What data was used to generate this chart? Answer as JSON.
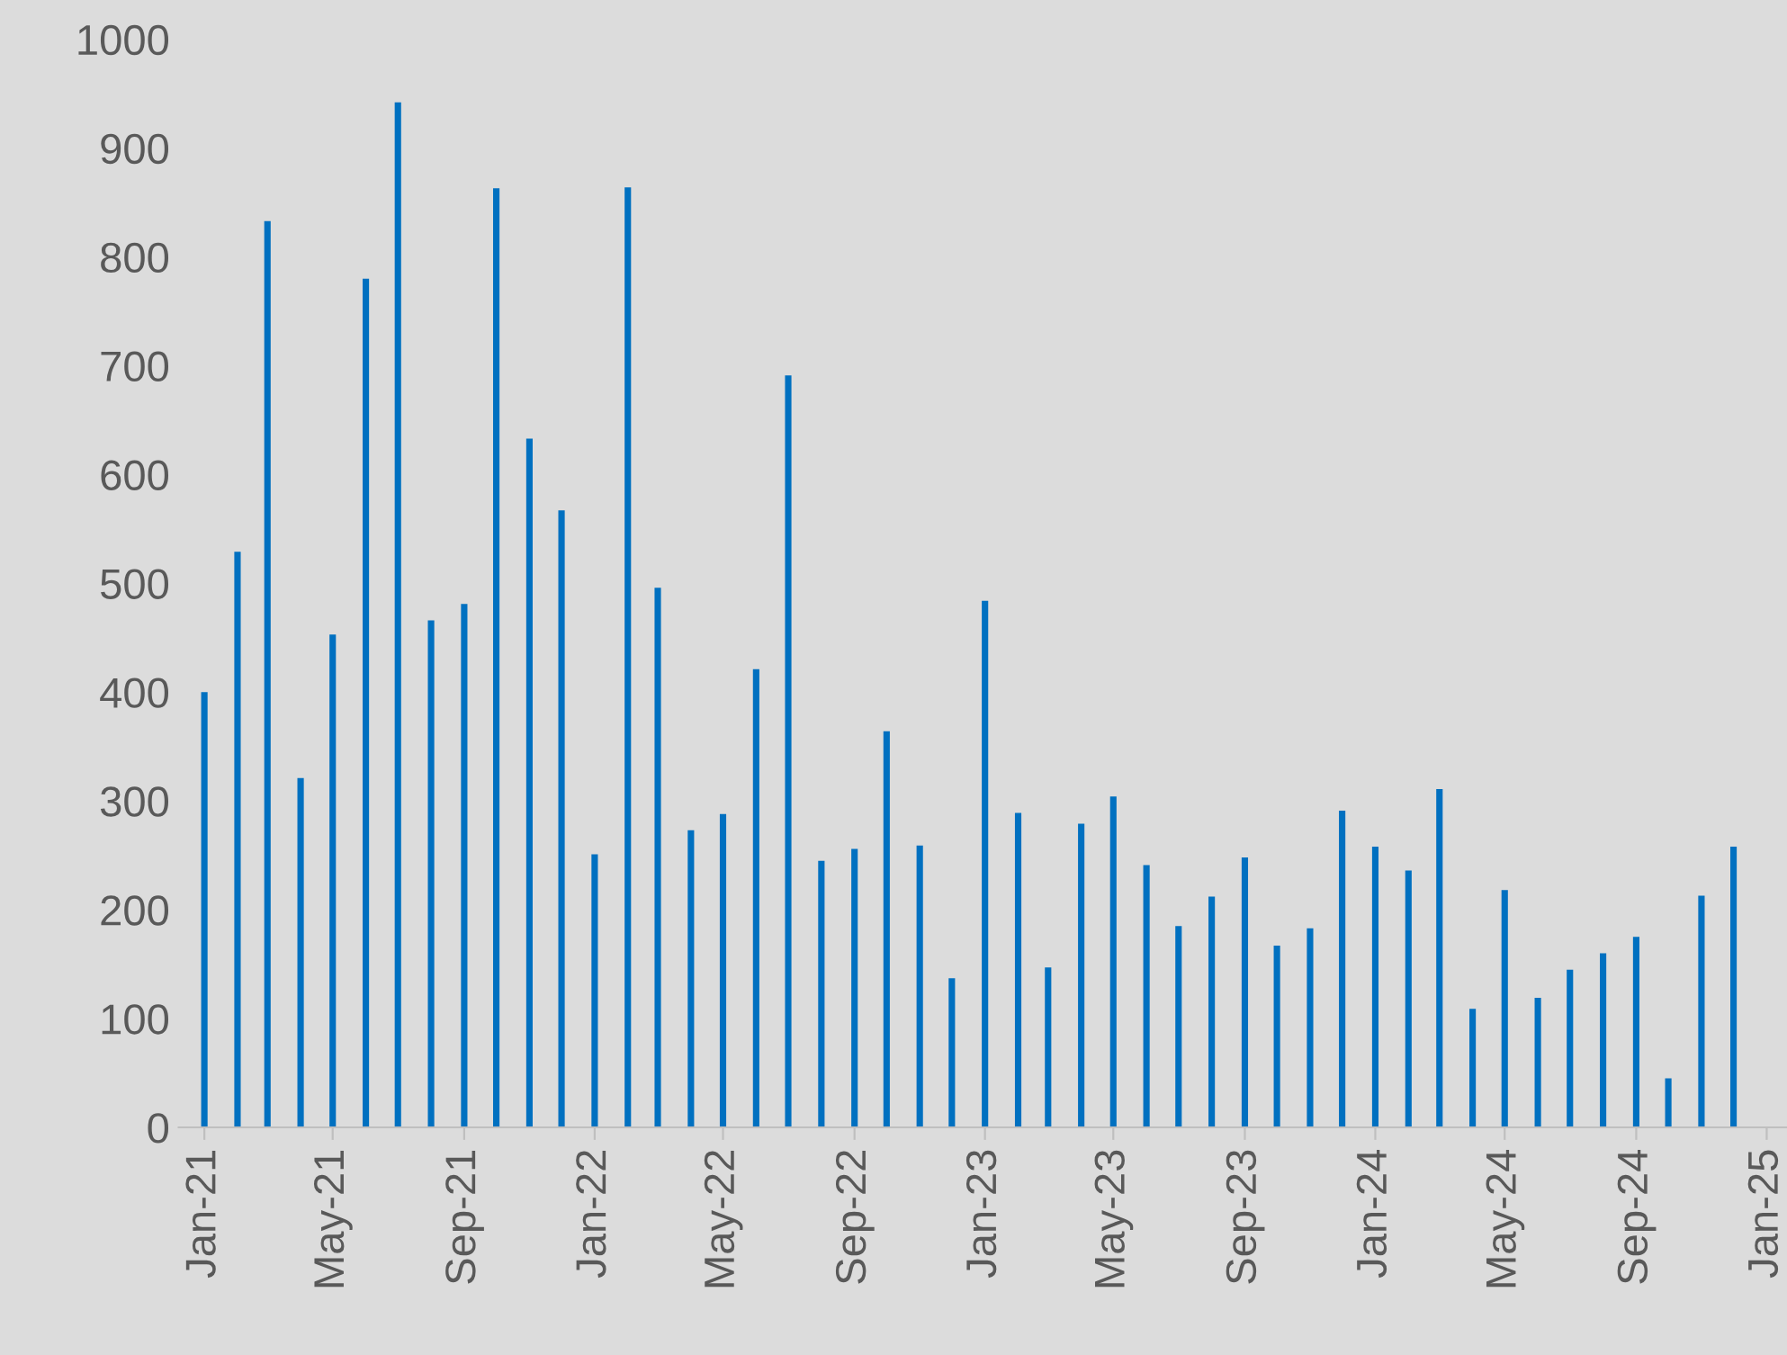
{
  "chart_data": {
    "type": "bar",
    "color": "#0070c0",
    "x": [
      "2021-01",
      "2021-02",
      "2021-03",
      "2021-04",
      "2021-05",
      "2021-06",
      "2021-07",
      "2021-08",
      "2021-09",
      "2021-10",
      "2021-11",
      "2021-12",
      "2022-01",
      "2022-02",
      "2022-03",
      "2022-04",
      "2022-05",
      "2022-06",
      "2022-07",
      "2022-08",
      "2022-09",
      "2022-10",
      "2022-11",
      "2022-12",
      "2023-01",
      "2023-02",
      "2023-03",
      "2023-04",
      "2023-05",
      "2023-06",
      "2023-07",
      "2023-08",
      "2023-09",
      "2023-10",
      "2023-11",
      "2023-12",
      "2024-01",
      "2024-02",
      "2024-03",
      "2024-04",
      "2024-05",
      "2024-06",
      "2024-07",
      "2024-08",
      "2024-09",
      "2024-10",
      "2024-11",
      "2024-12"
    ],
    "values": [
      400,
      529,
      833,
      321,
      453,
      780,
      942,
      466,
      481,
      863,
      633,
      567,
      251,
      864,
      496,
      273,
      288,
      421,
      691,
      245,
      256,
      364,
      259,
      137,
      484,
      289,
      147,
      279,
      304,
      241,
      185,
      212,
      248,
      167,
      183,
      291,
      258,
      236,
      311,
      109,
      218,
      119,
      145,
      160,
      175,
      45,
      213,
      258
    ],
    "ylim": [
      0,
      1000
    ],
    "yticks": [
      0,
      100,
      200,
      300,
      400,
      500,
      600,
      700,
      800,
      900,
      1000
    ],
    "xlim": [
      "2020-12-08",
      "2025-01-20"
    ],
    "xticks": [
      {
        "value": "2021-01",
        "label": "Jan-21"
      },
      {
        "value": "2021-05",
        "label": "May-21"
      },
      {
        "value": "2021-09",
        "label": "Sep-21"
      },
      {
        "value": "2022-01",
        "label": "Jan-22"
      },
      {
        "value": "2022-05",
        "label": "May-22"
      },
      {
        "value": "2022-09",
        "label": "Sep-22"
      },
      {
        "value": "2023-01",
        "label": "Jan-23"
      },
      {
        "value": "2023-05",
        "label": "May-23"
      },
      {
        "value": "2023-09",
        "label": "Sep-23"
      },
      {
        "value": "2024-01",
        "label": "Jan-24"
      },
      {
        "value": "2024-05",
        "label": "May-24"
      },
      {
        "value": "2024-09",
        "label": "Sep-24"
      },
      {
        "value": "2025-01",
        "label": "Jan-25"
      }
    ],
    "grid": false,
    "legend": false
  }
}
